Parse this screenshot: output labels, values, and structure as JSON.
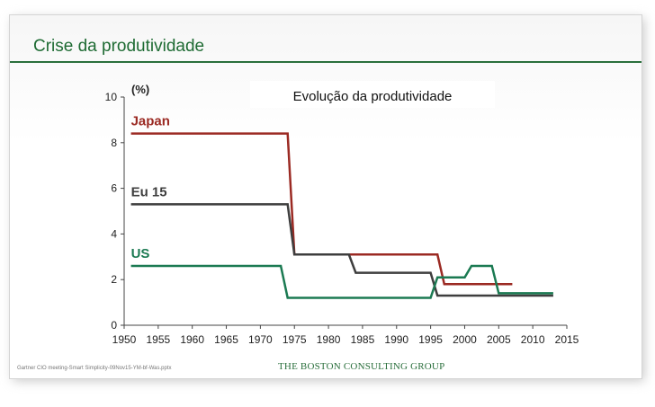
{
  "slide": {
    "title": "Crise da produtividade",
    "footer_note": "Gartner CIO meeting-Smart Simplicity-09Nov15-YM-bf-Was.pptx",
    "footer_brand": "THE BOSTON CONSULTING GROUP"
  },
  "colors": {
    "brand_green": "#2a6f3c",
    "japan": "#9b2a23",
    "eu15": "#3e3e3e",
    "us": "#1b7a52"
  },
  "chart_data": {
    "type": "line",
    "title": "Evolução da produtividade",
    "ylabel": "(%)",
    "xlim": [
      1950,
      2015
    ],
    "ylim": [
      0,
      10
    ],
    "x_ticks": [
      1950,
      1955,
      1960,
      1965,
      1970,
      1975,
      1980,
      1985,
      1990,
      1995,
      2000,
      2005,
      2010,
      2015
    ],
    "y_ticks": [
      0,
      2,
      4,
      6,
      8,
      10
    ],
    "grid": false,
    "series": [
      {
        "name": "Japan",
        "color": "#9b2a23",
        "points": [
          [
            1951,
            8.4
          ],
          [
            1974,
            8.4
          ],
          [
            1975,
            3.1
          ],
          [
            1996,
            3.1
          ],
          [
            1997,
            1.8
          ],
          [
            2007,
            1.8
          ]
        ]
      },
      {
        "name": "Eu 15",
        "color": "#3e3e3e",
        "points": [
          [
            1951,
            5.3
          ],
          [
            1974,
            5.3
          ],
          [
            1975,
            3.1
          ],
          [
            1983,
            3.1
          ],
          [
            1984,
            2.3
          ],
          [
            1995,
            2.3
          ],
          [
            1996,
            1.3
          ],
          [
            2013,
            1.3
          ]
        ]
      },
      {
        "name": "US",
        "color": "#1b7a52",
        "points": [
          [
            1951,
            2.6
          ],
          [
            1973,
            2.6
          ],
          [
            1974,
            1.2
          ],
          [
            1995,
            1.2
          ],
          [
            1996,
            2.1
          ],
          [
            2000,
            2.1
          ],
          [
            2001,
            2.6
          ],
          [
            2004,
            2.6
          ],
          [
            2005,
            1.4
          ],
          [
            2013,
            1.4
          ]
        ]
      }
    ]
  }
}
